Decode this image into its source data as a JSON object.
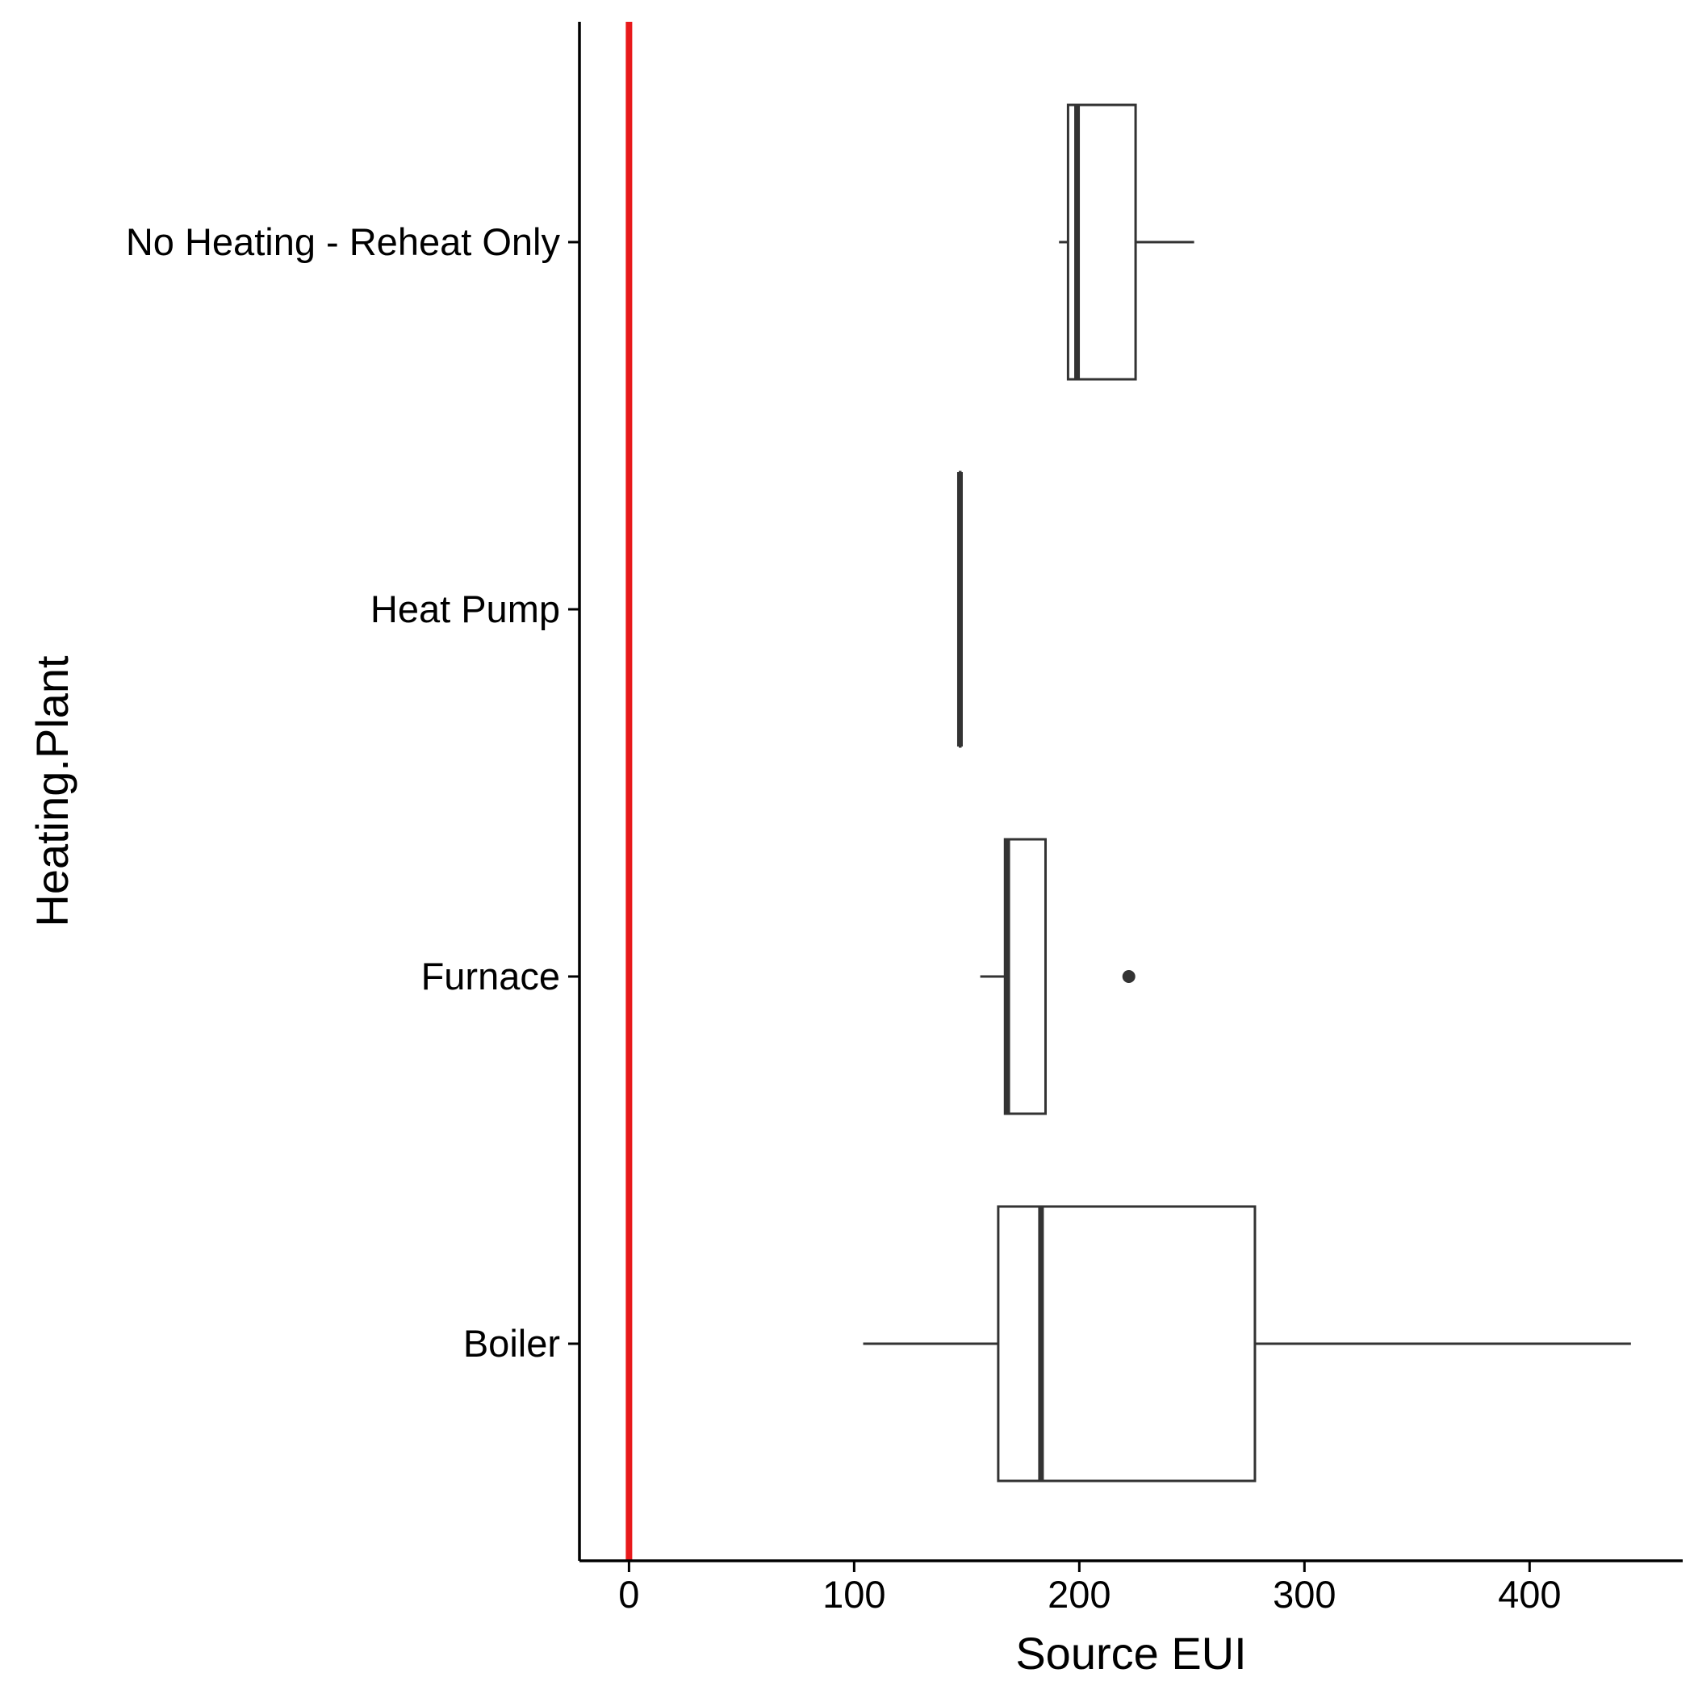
{
  "chart_data": {
    "type": "boxplot",
    "orientation": "horizontal",
    "xlabel": "Source EUI",
    "ylabel": "Heating.Plant",
    "xlim": [
      -22,
      468
    ],
    "xticks": [
      0,
      100,
      200,
      300,
      400
    ],
    "categories": [
      "No Heating - Reheat Only",
      "Heat Pump",
      "Furnace",
      "Boiler"
    ],
    "boxes": [
      {
        "category": "No Heating - Reheat Only",
        "whisker_low": 191,
        "q1": 195,
        "median": 199,
        "q3": 225,
        "whisker_high": 251,
        "outliers": []
      },
      {
        "category": "Heat Pump",
        "whisker_low": 147,
        "q1": 147,
        "median": 147,
        "q3": 147,
        "whisker_high": 147,
        "outliers": []
      },
      {
        "category": "Furnace",
        "whisker_low": 156,
        "q1": 167,
        "median": 168,
        "q3": 185,
        "whisker_high": 185,
        "outliers": [
          222
        ]
      },
      {
        "category": "Boiler",
        "whisker_low": 104,
        "q1": 164,
        "median": 183,
        "q3": 278,
        "whisker_high": 445,
        "outliers": []
      }
    ],
    "reference_line": {
      "x": 0,
      "color": "#e8191b"
    },
    "grid": false,
    "colors": {
      "box_stroke": "#333333",
      "axis": "#000000",
      "background": "#ffffff"
    }
  }
}
